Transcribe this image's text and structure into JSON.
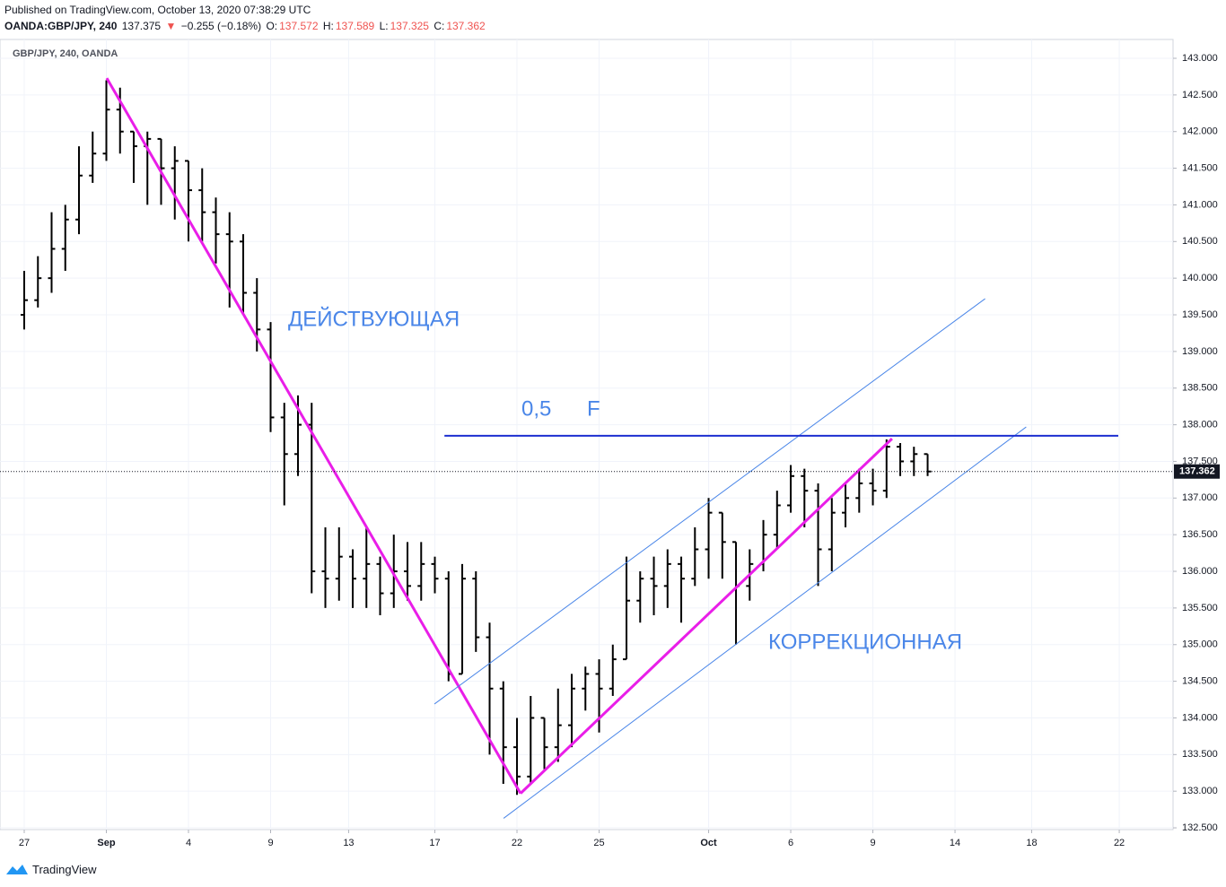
{
  "header": {
    "published": "Published on TradingView.com, October 13, 2020 07:38:29 UTC",
    "symbol": "OANDA:GBP/JPY, 240",
    "last": "137.375",
    "arrow": "▼",
    "change": "−0.255 (−0.18%)",
    "o_label": "O:",
    "o": "137.572",
    "h_label": "H:",
    "h": "137.589",
    "l_label": "L:",
    "l": "137.325",
    "c_label": "C:",
    "c": "137.362"
  },
  "footer": {
    "brand": "TradingView"
  },
  "chart_data": {
    "type": "ohlc",
    "subtitle": "GBP/JPY, 240, OANDA",
    "color": "#000000",
    "grid": true,
    "x": [
      0,
      1,
      2,
      3,
      4,
      5,
      6,
      7,
      8,
      9,
      10,
      11,
      12,
      13,
      14,
      15,
      16,
      17,
      18,
      19,
      20,
      21,
      22,
      23,
      24,
      25,
      26,
      27,
      28,
      29,
      30,
      31,
      32,
      33,
      34,
      35,
      36,
      37,
      38,
      39,
      40,
      41,
      42,
      43,
      44,
      45,
      46,
      47,
      48,
      49,
      50,
      51,
      52,
      53,
      54,
      55,
      56,
      57,
      58,
      59,
      60,
      61,
      62,
      63,
      64,
      65,
      66
    ],
    "open": [
      139.5,
      139.7,
      140.0,
      140.4,
      140.8,
      141.4,
      141.7,
      142.3,
      142.0,
      141.8,
      141.9,
      141.5,
      141.6,
      141.2,
      140.9,
      140.6,
      140.5,
      139.8,
      139.3,
      138.1,
      137.6,
      138.0,
      136.0,
      135.9,
      136.2,
      135.9,
      136.1,
      135.7,
      136.0,
      135.8,
      136.1,
      135.9,
      134.6,
      135.9,
      135.1,
      134.4,
      133.6,
      133.2,
      134.0,
      133.6,
      133.9,
      134.4,
      134.6,
      134.4,
      134.8,
      135.6,
      135.9,
      135.8,
      136.1,
      135.9,
      136.3,
      136.8,
      136.4,
      135.8,
      136.1,
      136.5,
      136.9,
      137.3,
      137.1,
      136.3,
      136.8,
      137.0,
      137.2,
      137.1,
      137.7,
      137.5,
      137.6
    ],
    "high": [
      140.1,
      140.3,
      140.9,
      141.0,
      141.8,
      142.0,
      142.7,
      142.6,
      142.0,
      142.0,
      141.9,
      141.8,
      141.6,
      141.5,
      141.1,
      140.9,
      140.6,
      140.0,
      139.4,
      138.3,
      138.4,
      138.3,
      136.6,
      136.6,
      136.3,
      136.6,
      136.2,
      136.5,
      136.4,
      136.4,
      136.2,
      136.0,
      136.1,
      136.0,
      135.3,
      134.5,
      134.0,
      134.3,
      134.0,
      134.4,
      134.6,
      134.7,
      134.8,
      135.0,
      136.2,
      136.0,
      136.2,
      136.3,
      136.2,
      136.6,
      137.0,
      136.8,
      136.4,
      136.3,
      136.7,
      137.1,
      137.45,
      137.4,
      137.2,
      137.0,
      137.2,
      137.4,
      137.4,
      137.8,
      137.75,
      137.7,
      137.6
    ],
    "low": [
      139.3,
      139.6,
      139.8,
      140.1,
      140.6,
      141.3,
      141.6,
      141.7,
      141.3,
      141.0,
      141.0,
      140.8,
      140.5,
      140.5,
      140.2,
      139.6,
      139.5,
      139.0,
      137.9,
      136.9,
      137.3,
      135.7,
      135.5,
      135.6,
      135.5,
      135.5,
      135.4,
      135.5,
      135.6,
      135.6,
      135.7,
      134.5,
      134.6,
      134.9,
      133.5,
      133.1,
      132.95,
      133.1,
      133.3,
      133.4,
      133.6,
      134.1,
      133.8,
      134.3,
      134.8,
      135.3,
      135.4,
      135.5,
      135.3,
      135.8,
      135.9,
      135.9,
      135.0,
      135.6,
      136.0,
      136.3,
      136.8,
      136.6,
      135.8,
      136.0,
      136.6,
      136.8,
      136.9,
      137.0,
      137.3,
      137.3,
      137.3
    ],
    "close": [
      139.7,
      140.0,
      140.4,
      140.8,
      141.4,
      141.7,
      142.3,
      142.0,
      141.8,
      141.9,
      141.5,
      141.6,
      141.2,
      140.9,
      140.6,
      140.5,
      139.8,
      139.3,
      138.1,
      137.6,
      138.0,
      136.0,
      135.9,
      136.2,
      135.9,
      136.1,
      135.7,
      136.0,
      135.8,
      136.1,
      135.9,
      134.6,
      135.9,
      135.1,
      134.4,
      133.6,
      133.2,
      134.0,
      133.6,
      133.9,
      134.4,
      134.6,
      134.4,
      134.8,
      135.6,
      135.9,
      135.8,
      136.1,
      135.9,
      136.3,
      136.8,
      136.4,
      135.8,
      136.1,
      136.5,
      136.9,
      137.3,
      137.1,
      136.3,
      136.8,
      137.0,
      137.2,
      137.1,
      137.7,
      137.5,
      137.6,
      137.362
    ],
    "xlim": [
      -1.77,
      83.93
    ],
    "ylim": [
      132.476,
      143.257
    ],
    "xticks": [
      {
        "value": 0,
        "label": "27"
      },
      {
        "value": 6,
        "label": "Sep"
      },
      {
        "value": 12,
        "label": "4"
      },
      {
        "value": 18,
        "label": "9"
      },
      {
        "value": 23.7,
        "label": "13"
      },
      {
        "value": 30,
        "label": "17"
      },
      {
        "value": 36,
        "label": "22"
      },
      {
        "value": 42,
        "label": "25"
      },
      {
        "value": 50,
        "label": "Oct"
      },
      {
        "value": 56,
        "label": "6"
      },
      {
        "value": 62,
        "label": "9"
      },
      {
        "value": 68,
        "label": "14"
      },
      {
        "value": 73.6,
        "label": "18"
      },
      {
        "value": 80,
        "label": "22"
      }
    ],
    "yticks": [
      {
        "value": 132.5,
        "label": "132.500"
      },
      {
        "value": 133,
        "label": "133.000"
      },
      {
        "value": 133.5,
        "label": "133.500"
      },
      {
        "value": 134,
        "label": "134.000"
      },
      {
        "value": 134.5,
        "label": "134.500"
      },
      {
        "value": 135,
        "label": "135.000"
      },
      {
        "value": 135.5,
        "label": "135.500"
      },
      {
        "value": 136,
        "label": "136.000"
      },
      {
        "value": 136.5,
        "label": "136.500"
      },
      {
        "value": 137,
        "label": "137.000"
      },
      {
        "value": 137.5,
        "label": "137.500"
      },
      {
        "value": 138,
        "label": "138.000"
      },
      {
        "value": 138.5,
        "label": "138.500"
      },
      {
        "value": 139,
        "label": "139.000"
      },
      {
        "value": 139.5,
        "label": "139.500"
      },
      {
        "value": 140,
        "label": "140.000"
      },
      {
        "value": 140.5,
        "label": "140.500"
      },
      {
        "value": 141,
        "label": "141.000"
      },
      {
        "value": 141.5,
        "label": "141.500"
      },
      {
        "value": 142,
        "label": "142.000"
      },
      {
        "value": 142.5,
        "label": "142.500"
      },
      {
        "value": 143,
        "label": "143.000"
      }
    ],
    "trendlines": [
      {
        "color": "#e91ee8",
        "width": 3,
        "points": [
          [
            6.03,
            142.73
          ],
          [
            36.26,
            132.97
          ]
        ]
      },
      {
        "color": "#e91ee8",
        "width": 3,
        "points": [
          [
            36.26,
            132.97
          ],
          [
            63.4,
            137.81
          ]
        ]
      },
      {
        "color": "#4a86e8",
        "width": 1,
        "points": [
          [
            29.97,
            134.19
          ],
          [
            70.2,
            139.72
          ]
        ]
      },
      {
        "color": "#4a86e8",
        "width": 1,
        "points": [
          [
            35.02,
            132.63
          ],
          [
            73.2,
            137.97
          ]
        ]
      },
      {
        "color": "#1d2fd0",
        "width": 2,
        "points": [
          [
            30.7,
            137.85
          ],
          [
            79.93,
            137.85
          ]
        ]
      }
    ],
    "annotations": [
      "ДЕЙСТВУЮЩАЯ",
      "0,5",
      "F",
      "КОРРЕКЦИОННАЯ"
    ]
  }
}
